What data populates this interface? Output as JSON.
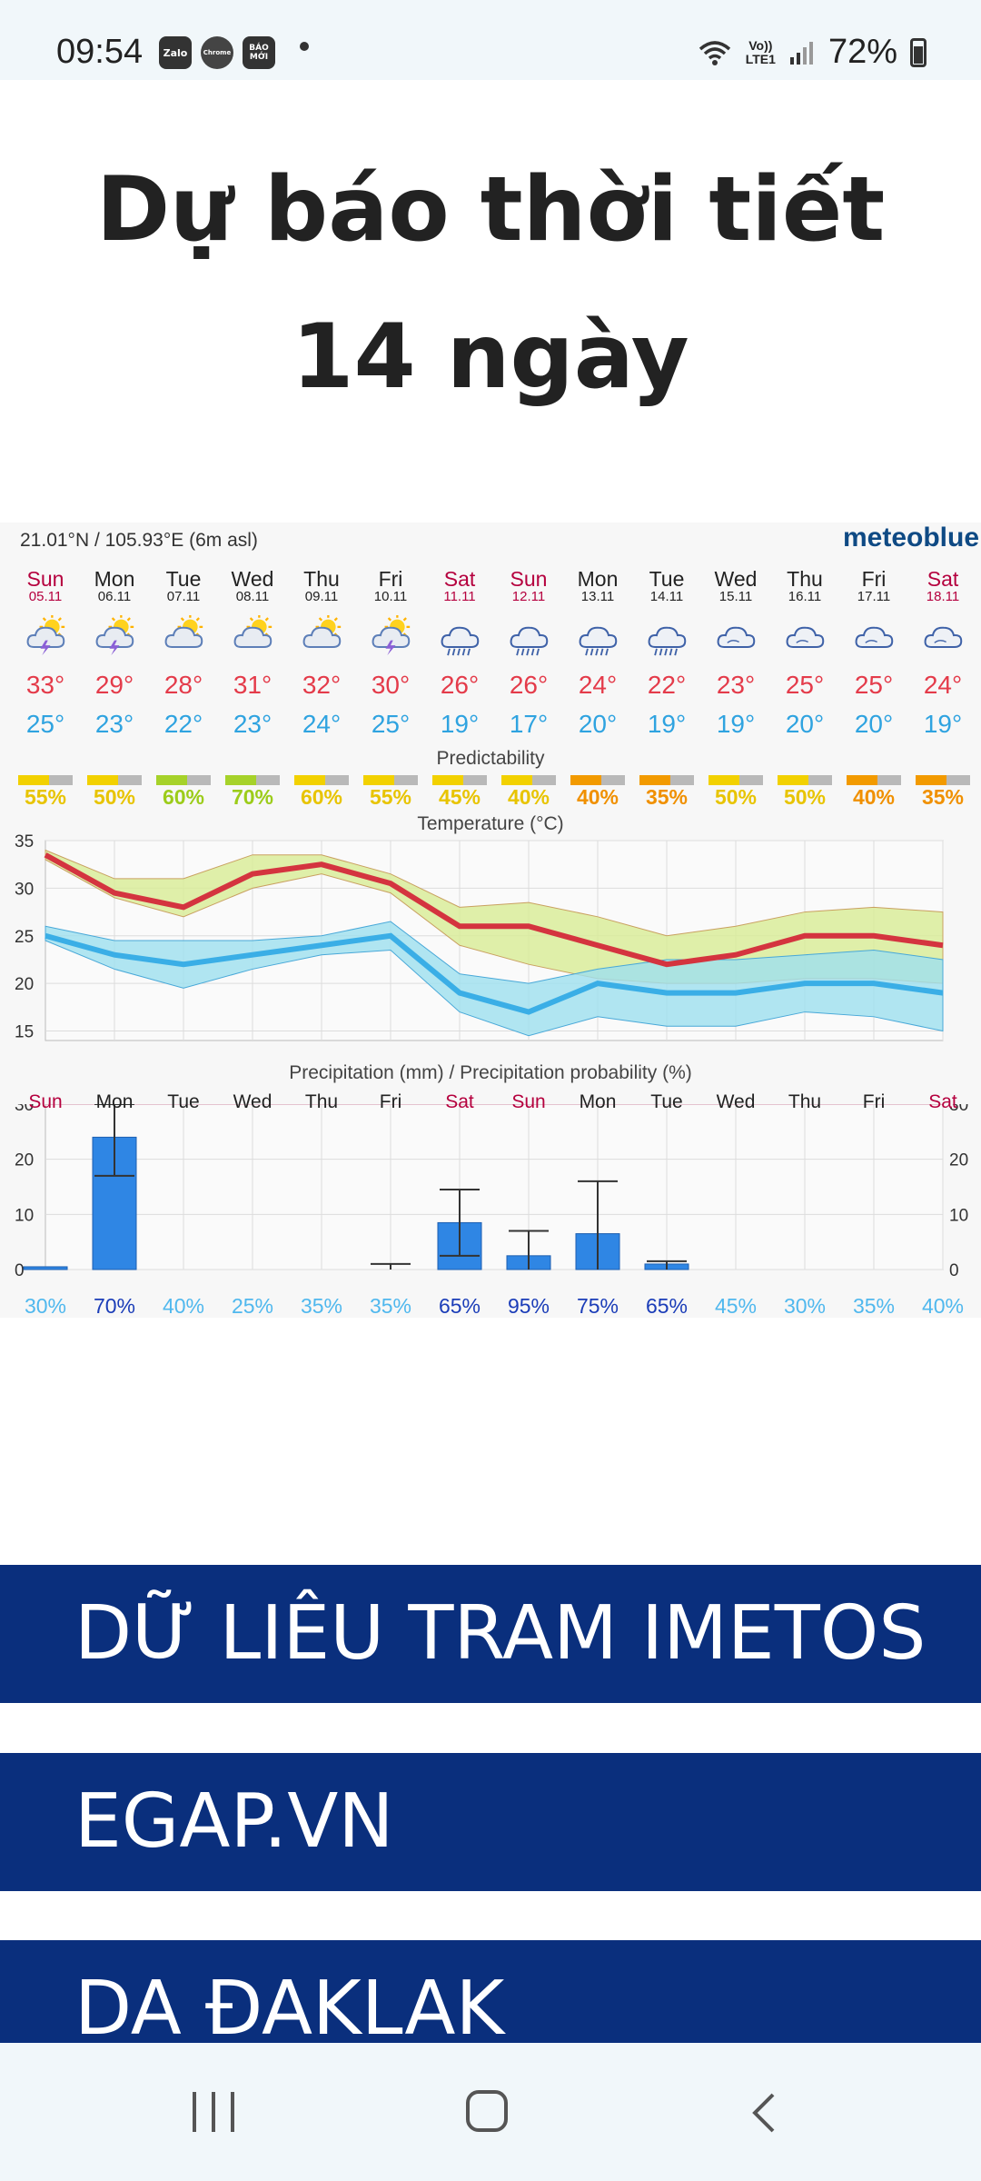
{
  "status": {
    "time": "09:54",
    "apps": [
      "Zalo",
      "Chrome",
      "BÁO MỚI"
    ],
    "volte": "Vo))",
    "lte": "LTE1",
    "battery": "72%"
  },
  "title": {
    "line1": "Dự báo thời tiết",
    "line2": "14 ngày"
  },
  "forecast": {
    "coords": "21.01°N / 105.93°E (6m asl)",
    "brand": "meteoblue",
    "predictability_label": "Predictability",
    "temperature_label": "Temperature (°C)",
    "precip_label": "Precipitation (mm) / Precipitation probability (%)",
    "days": [
      {
        "name": "Sun",
        "date": "05.11",
        "weekend": true,
        "icon": "sun-cloud-thunder-icon",
        "max": "33°",
        "min": "25°",
        "pred": "55%",
        "pred_color": "#f2d100",
        "pred_text": "#e8c400",
        "short": "Sun",
        "prob": "30%"
      },
      {
        "name": "Mon",
        "date": "06.11",
        "weekend": false,
        "icon": "sun-cloud-thunder-icon",
        "max": "29°",
        "min": "23°",
        "pred": "50%",
        "pred_color": "#f2d100",
        "pred_text": "#e8c400",
        "short": "Mon",
        "prob": "70%"
      },
      {
        "name": "Tue",
        "date": "07.11",
        "weekend": false,
        "icon": "sun-cloud-icon",
        "max": "28°",
        "min": "22°",
        "pred": "60%",
        "pred_color": "#a6d22a",
        "pred_text": "#9ccc1a",
        "short": "Tue",
        "prob": "40%"
      },
      {
        "name": "Wed",
        "date": "08.11",
        "weekend": false,
        "icon": "sun-cloud-icon",
        "max": "31°",
        "min": "23°",
        "pred": "70%",
        "pred_color": "#a6d22a",
        "pred_text": "#9ccc1a",
        "short": "Wed",
        "prob": "25%"
      },
      {
        "name": "Thu",
        "date": "09.11",
        "weekend": false,
        "icon": "sun-cloud-icon",
        "max": "32°",
        "min": "24°",
        "pred": "60%",
        "pred_color": "#f2d100",
        "pred_text": "#e8c400",
        "short": "Thu",
        "prob": "35%"
      },
      {
        "name": "Fri",
        "date": "10.11",
        "weekend": false,
        "icon": "sun-cloud-thunder-icon",
        "max": "30°",
        "min": "25°",
        "pred": "55%",
        "pred_color": "#f2d100",
        "pred_text": "#e8c400",
        "short": "Fri",
        "prob": "35%"
      },
      {
        "name": "Sat",
        "date": "11.11",
        "weekend": true,
        "icon": "cloud-rain-icon",
        "max": "26°",
        "min": "19°",
        "pred": "45%",
        "pred_color": "#f2d100",
        "pred_text": "#e8c400",
        "short": "Sat",
        "prob": "65%"
      },
      {
        "name": "Sun",
        "date": "12.11",
        "weekend": true,
        "icon": "cloud-rain-icon",
        "max": "26°",
        "min": "17°",
        "pred": "40%",
        "pred_color": "#f2d100",
        "pred_text": "#e8c400",
        "short": "Sun",
        "prob": "95%"
      },
      {
        "name": "Mon",
        "date": "13.11",
        "weekend": false,
        "icon": "cloud-rain-icon",
        "max": "24°",
        "min": "20°",
        "pred": "40%",
        "pred_color": "#f29a00",
        "pred_text": "#f09000",
        "short": "Mon",
        "prob": "75%"
      },
      {
        "name": "Tue",
        "date": "14.11",
        "weekend": false,
        "icon": "cloud-rain-icon",
        "max": "22°",
        "min": "19°",
        "pred": "35%",
        "pred_color": "#f29a00",
        "pred_text": "#f09000",
        "short": "Tue",
        "prob": "65%"
      },
      {
        "name": "Wed",
        "date": "15.11",
        "weekend": false,
        "icon": "cloud-icon",
        "max": "23°",
        "min": "19°",
        "pred": "50%",
        "pred_color": "#f2d100",
        "pred_text": "#e8c400",
        "short": "Wed",
        "prob": "45%"
      },
      {
        "name": "Thu",
        "date": "16.11",
        "weekend": false,
        "icon": "cloud-icon",
        "max": "25°",
        "min": "20°",
        "pred": "50%",
        "pred_color": "#f2d100",
        "pred_text": "#e8c400",
        "short": "Thu",
        "prob": "30%"
      },
      {
        "name": "Fri",
        "date": "17.11",
        "weekend": false,
        "icon": "cloud-icon",
        "max": "25°",
        "min": "20°",
        "pred": "40%",
        "pred_color": "#f29a00",
        "pred_text": "#f09000",
        "short": "Fri",
        "prob": "35%"
      },
      {
        "name": "Sat",
        "date": "18.11",
        "weekend": true,
        "icon": "cloud-icon",
        "max": "24°",
        "min": "19°",
        "pred": "35%",
        "pred_color": "#f29a00",
        "pred_text": "#f09000",
        "short": "Sat",
        "prob": "40%"
      }
    ],
    "colors": {
      "max_line": "#d4343f",
      "max_band": "#d9ec9a",
      "min_line": "#3aaee6",
      "min_band": "#9de0ef",
      "overlap": "#7fd38f",
      "bar": "#2f86e4",
      "prob_high": "#1b3db8",
      "prob_low": "#50b8ee"
    }
  },
  "chart_data": [
    {
      "type": "line",
      "title": "Temperature (°C)",
      "x": [
        "05.11",
        "06.11",
        "07.11",
        "08.11",
        "09.11",
        "10.11",
        "11.11",
        "12.11",
        "13.11",
        "14.11",
        "15.11",
        "16.11",
        "17.11",
        "18.11"
      ],
      "ylim": [
        14,
        35
      ],
      "yticks": [
        15,
        20,
        25,
        30,
        35
      ],
      "series": [
        {
          "values": [
            33.5,
            29.5,
            28,
            31.5,
            32.5,
            30.5,
            26,
            26,
            24,
            22,
            23,
            25,
            25,
            24
          ],
          "band_low": [
            33,
            29,
            27,
            30,
            31.5,
            29.5,
            24,
            22,
            20.5,
            20,
            20,
            20.5,
            20.5,
            20
          ],
          "band_high": [
            34,
            31,
            31,
            33.5,
            33.5,
            31.5,
            28,
            28.5,
            27,
            25,
            26,
            27.5,
            28,
            27.5
          ]
        },
        {
          "values": [
            25,
            23,
            22,
            23,
            24,
            25,
            19,
            17,
            20,
            19,
            19,
            20,
            20,
            19
          ],
          "band_low": [
            24.5,
            21.5,
            19.5,
            21.5,
            23,
            23.5,
            17,
            14.5,
            16.5,
            15.5,
            15.5,
            17,
            16.5,
            15
          ],
          "band_high": [
            26,
            24.5,
            24.5,
            24.5,
            25,
            26.5,
            21,
            20,
            21.5,
            22.5,
            22.5,
            23,
            23.5,
            22.5
          ]
        }
      ]
    },
    {
      "type": "bar",
      "title": "Precipitation (mm) / Precipitation probability (%)",
      "categories": [
        "Sun",
        "Mon",
        "Tue",
        "Wed",
        "Thu",
        "Fri",
        "Sat",
        "Sun",
        "Mon",
        "Tue",
        "Wed",
        "Thu",
        "Fri",
        "Sat"
      ],
      "values": [
        0.5,
        24,
        0,
        0,
        0,
        0,
        8.5,
        2.5,
        6.5,
        1,
        0,
        0,
        0,
        0
      ],
      "err_low": [
        0,
        17,
        0,
        0,
        0,
        0,
        2.5,
        0,
        0,
        0,
        0,
        0,
        0,
        0
      ],
      "err_high": [
        0,
        30,
        0,
        0,
        0,
        1,
        14.5,
        7,
        16,
        1.5,
        0,
        0,
        0,
        0
      ],
      "probability": [
        30,
        70,
        40,
        25,
        35,
        35,
        65,
        95,
        75,
        65,
        45,
        30,
        35,
        40
      ],
      "ylim": [
        0,
        30
      ],
      "yticks": [
        0,
        10,
        20,
        30
      ]
    }
  ],
  "links": [
    {
      "label": "DỮ LIÊU TRAM IMETOS"
    },
    {
      "label": "EGAP.VN"
    },
    {
      "label": "DA ĐAKLAK"
    }
  ],
  "nav": {
    "recent": "recent-apps",
    "home": "home",
    "back": "back"
  }
}
